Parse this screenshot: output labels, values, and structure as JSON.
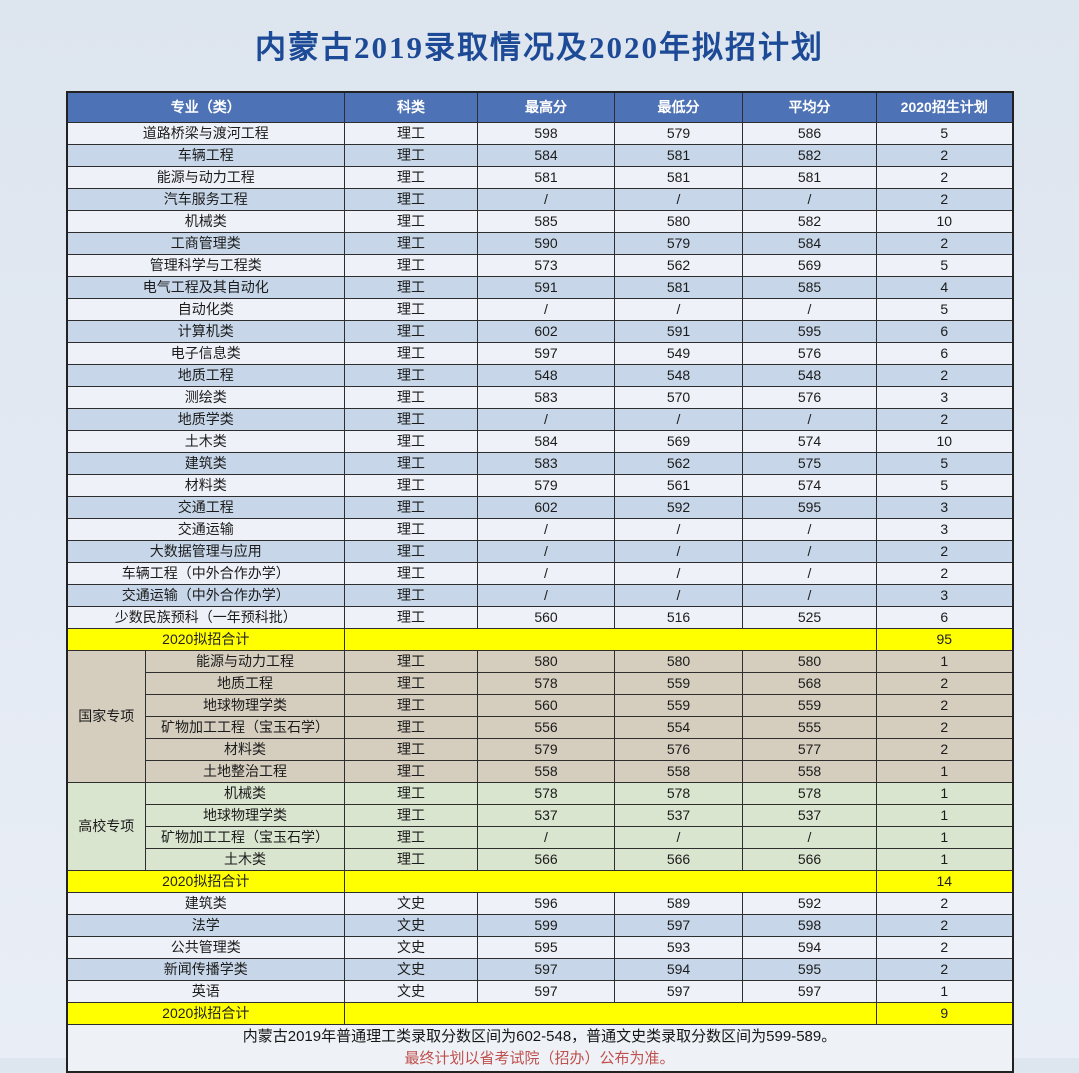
{
  "colors": {
    "page_background": "#e4eaf3",
    "title_text": "#1d4a96",
    "header_background": "#4d72b5",
    "header_text": "#ffffff",
    "row_light": "#eef1f7",
    "row_blue": "#c7d7e9",
    "row_national_special_tan": "#d5cebf",
    "row_university_special_green": "#dae5cf",
    "total_row_yellow": "#ffff00",
    "footnote_red": "#c0504d",
    "table_border": "#2e2e2e"
  },
  "chart_data": {
    "type": "table",
    "title": "内蒙古2019录取情况及2020年拟招计划",
    "columns": [
      "专业（类）",
      "科类",
      "最高分",
      "最低分",
      "平均分",
      "2020招生计划"
    ],
    "sections": [
      {
        "kind": "rows",
        "style": "alt",
        "rows": [
          [
            "道路桥梁与渡河工程",
            "理工",
            "598",
            "579",
            "586",
            "5"
          ],
          [
            "车辆工程",
            "理工",
            "584",
            "581",
            "582",
            "2"
          ],
          [
            "能源与动力工程",
            "理工",
            "581",
            "581",
            "581",
            "2"
          ],
          [
            "汽车服务工程",
            "理工",
            "/",
            "/",
            "/",
            "2"
          ],
          [
            "机械类",
            "理工",
            "585",
            "580",
            "582",
            "10"
          ],
          [
            "工商管理类",
            "理工",
            "590",
            "579",
            "584",
            "2"
          ],
          [
            "管理科学与工程类",
            "理工",
            "573",
            "562",
            "569",
            "5"
          ],
          [
            "电气工程及其自动化",
            "理工",
            "591",
            "581",
            "585",
            "4"
          ],
          [
            "自动化类",
            "理工",
            "/",
            "/",
            "/",
            "5"
          ],
          [
            "计算机类",
            "理工",
            "602",
            "591",
            "595",
            "6"
          ],
          [
            "电子信息类",
            "理工",
            "597",
            "549",
            "576",
            "6"
          ],
          [
            "地质工程",
            "理工",
            "548",
            "548",
            "548",
            "2"
          ],
          [
            "测绘类",
            "理工",
            "583",
            "570",
            "576",
            "3"
          ],
          [
            "地质学类",
            "理工",
            "/",
            "/",
            "/",
            "2"
          ],
          [
            "土木类",
            "理工",
            "584",
            "569",
            "574",
            "10"
          ],
          [
            "建筑类",
            "理工",
            "583",
            "562",
            "575",
            "5"
          ],
          [
            "材料类",
            "理工",
            "579",
            "561",
            "574",
            "5"
          ],
          [
            "交通工程",
            "理工",
            "602",
            "592",
            "595",
            "3"
          ],
          [
            "交通运输",
            "理工",
            "/",
            "/",
            "/",
            "3"
          ],
          [
            "大数据管理与应用",
            "理工",
            "/",
            "/",
            "/",
            "2"
          ],
          [
            "车辆工程（中外合作办学）",
            "理工",
            "/",
            "/",
            "/",
            "2"
          ],
          [
            "交通运输（中外合作办学）",
            "理工",
            "/",
            "/",
            "/",
            "3"
          ],
          [
            "少数民族预科（一年预科批）",
            "理工",
            "560",
            "516",
            "525",
            "6"
          ]
        ]
      },
      {
        "kind": "total",
        "label": "2020拟招合计",
        "value": "95"
      },
      {
        "kind": "group",
        "label": "国家专项",
        "style": "tan",
        "rows": [
          [
            "能源与动力工程",
            "理工",
            "580",
            "580",
            "580",
            "1"
          ],
          [
            "地质工程",
            "理工",
            "578",
            "559",
            "568",
            "2"
          ],
          [
            "地球物理学类",
            "理工",
            "560",
            "559",
            "559",
            "2"
          ],
          [
            "矿物加工工程（宝玉石学）",
            "理工",
            "556",
            "554",
            "555",
            "2"
          ],
          [
            "材料类",
            "理工",
            "579",
            "576",
            "577",
            "2"
          ],
          [
            "土地整治工程",
            "理工",
            "558",
            "558",
            "558",
            "1"
          ]
        ]
      },
      {
        "kind": "group",
        "label": "高校专项",
        "style": "green",
        "rows": [
          [
            "机械类",
            "理工",
            "578",
            "578",
            "578",
            "1"
          ],
          [
            "地球物理学类",
            "理工",
            "537",
            "537",
            "537",
            "1"
          ],
          [
            "矿物加工工程（宝玉石学）",
            "理工",
            "/",
            "/",
            "/",
            "1"
          ],
          [
            "土木类",
            "理工",
            "566",
            "566",
            "566",
            "1"
          ]
        ]
      },
      {
        "kind": "total",
        "label": "2020拟招合计",
        "value": "14"
      },
      {
        "kind": "rows",
        "style": "alt",
        "rows": [
          [
            "建筑类",
            "文史",
            "596",
            "589",
            "592",
            "2"
          ],
          [
            "法学",
            "文史",
            "599",
            "597",
            "598",
            "2"
          ],
          [
            "公共管理类",
            "文史",
            "595",
            "593",
            "594",
            "2"
          ],
          [
            "新闻传播学类",
            "文史",
            "597",
            "594",
            "595",
            "2"
          ],
          [
            "英语",
            "文史",
            "597",
            "597",
            "597",
            "1"
          ]
        ]
      },
      {
        "kind": "total",
        "label": "2020拟招合计",
        "value": "9"
      }
    ],
    "footnotes": [
      {
        "text": "内蒙古2019年普通理工类录取分数区间为602-548，普通文史类录取分数区间为599-589。",
        "color": "dark"
      },
      {
        "text": "最终计划以省考试院（招办）公布为准。",
        "color": "red"
      }
    ]
  }
}
